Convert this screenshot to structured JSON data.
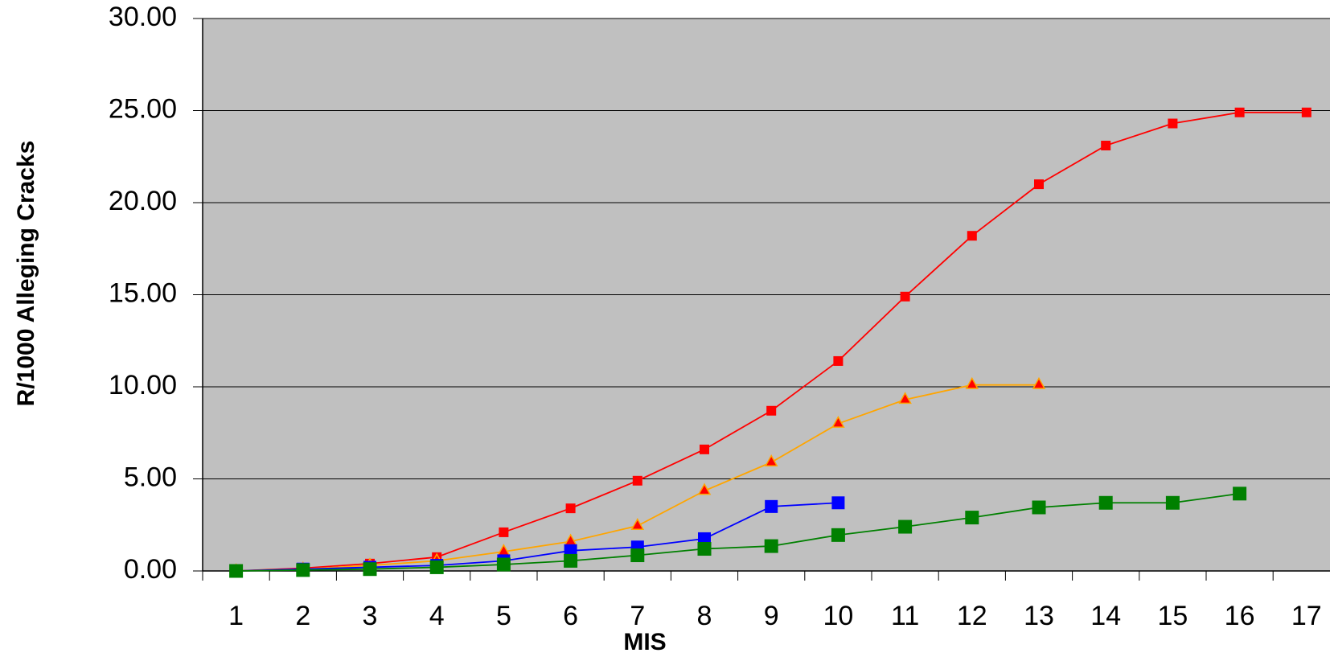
{
  "chart_data": {
    "type": "line",
    "categories": [
      "1",
      "2",
      "3",
      "4",
      "5",
      "6",
      "7",
      "8",
      "9",
      "10",
      "11",
      "12",
      "13",
      "14",
      "15",
      "16",
      "17"
    ],
    "x_label": "MIS",
    "y_label": "R/1000 Alleging Cracks",
    "ylim": [
      0,
      30
    ],
    "yticks": [
      {
        "value": 0,
        "label": "0.00"
      },
      {
        "value": 5,
        "label": "5.00"
      },
      {
        "value": 10,
        "label": "10.00"
      },
      {
        "value": 15,
        "label": "15.00"
      },
      {
        "value": 20,
        "label": "20.00"
      },
      {
        "value": 25,
        "label": "25.00"
      },
      {
        "value": 30,
        "label": "30.00"
      }
    ],
    "grid": true,
    "plot_background": "#c0c0c0",
    "series": [
      {
        "color": "#ff0000",
        "marker": "square",
        "marker_fill": "#ff0000",
        "values": [
          0,
          0.15,
          0.4,
          0.75,
          2.1,
          3.4,
          4.9,
          6.6,
          8.7,
          11.4,
          14.9,
          18.2,
          21.0,
          23.1,
          24.3,
          24.9,
          24.9
        ]
      },
      {
        "color": "#ffa500",
        "marker": "triangle",
        "marker_fill": "#ff0000",
        "values": [
          0,
          0.1,
          0.3,
          0.55,
          1.05,
          1.6,
          2.45,
          4.35,
          5.9,
          8.0,
          9.3,
          10.1,
          10.1,
          null,
          null,
          null,
          null
        ]
      },
      {
        "color": "#0000ff",
        "marker": "square",
        "marker_fill": "#0000ff",
        "values": [
          0,
          0.1,
          0.2,
          0.3,
          0.55,
          1.1,
          1.3,
          1.75,
          3.5,
          3.7,
          null,
          null,
          null,
          null,
          null,
          null,
          null
        ]
      },
      {
        "color": "#008000",
        "marker": "square",
        "marker_fill": "#008000",
        "values": [
          0,
          0.05,
          0.1,
          0.2,
          0.35,
          0.55,
          0.85,
          1.2,
          1.35,
          1.95,
          2.4,
          2.9,
          3.45,
          3.7,
          3.7,
          4.2,
          null
        ]
      }
    ]
  }
}
